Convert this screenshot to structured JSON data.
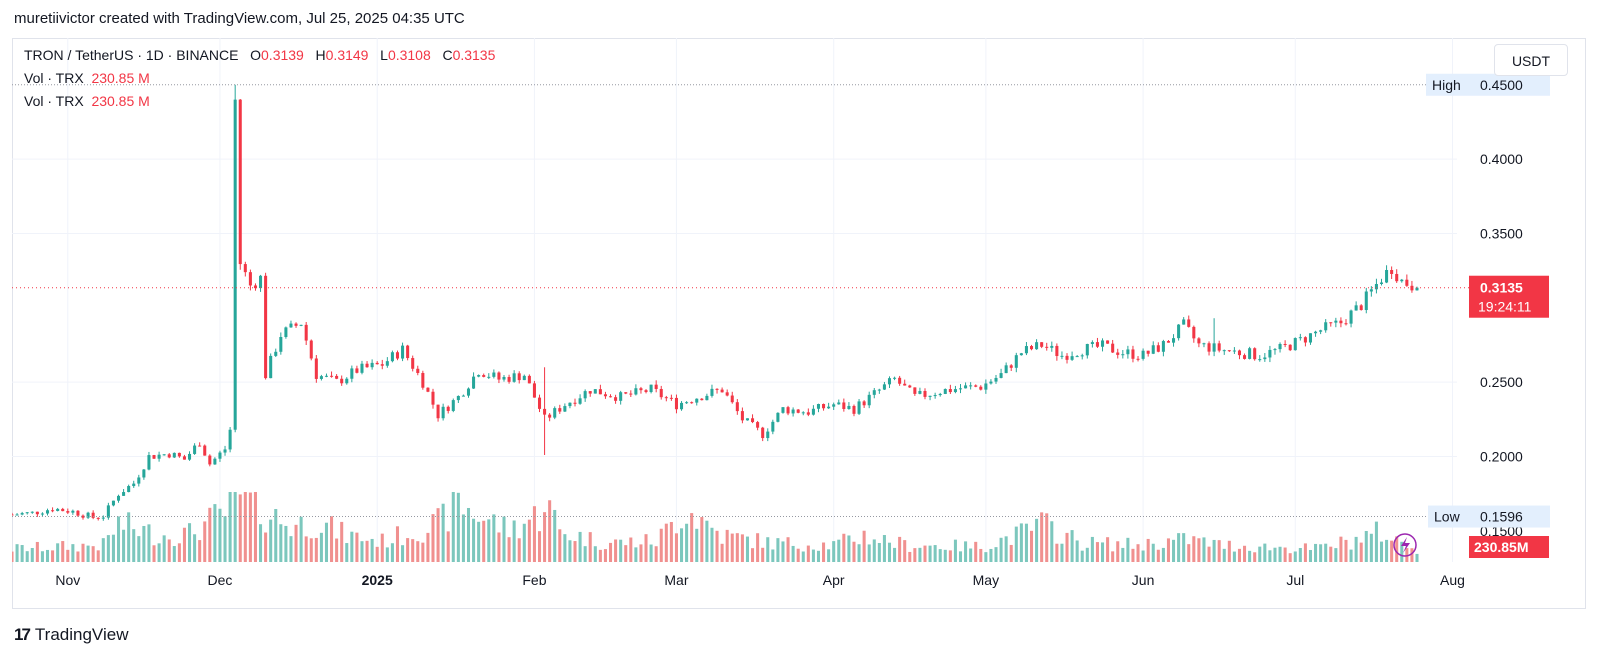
{
  "caption": "muretiivictor created with TradingView.com, Jul 25, 2025 04:35 UTC",
  "legend": {
    "symbol": "TRON / TetherUS · 1D · BINANCE",
    "o_label": "O",
    "o_value": "0.3139",
    "h_label": "H",
    "h_value": "0.3149",
    "l_label": "L",
    "l_value": "0.3108",
    "c_label": "C",
    "c_value": "0.3135",
    "vol_label": "Vol · TRX",
    "vol_value": "230.85 M",
    "vol2_label": "Vol · TRX",
    "vol2_value": "230.85 M"
  },
  "currency_button": "USDT",
  "footer_brand": "TradingView",
  "footer_mark": "17",
  "colors": {
    "up": "#26a69a",
    "down": "#f23645",
    "up_vol": "#7cc7bd",
    "down_vol": "#f0908f",
    "axis_text": "#131722",
    "grid": "#f0f3fa"
  },
  "chart_data": {
    "type": "candlestick",
    "symbol": "TRXUSDT",
    "interval": "1D",
    "x_start": "2024-10-21",
    "x_end": "2025-07-25",
    "ylim": [
      0.125,
      0.468
    ],
    "y_ticks": [
      "0.2000",
      "0.2500",
      "0.3500",
      "0.4000"
    ],
    "y_tick_values": [
      0.2,
      0.25,
      0.35,
      0.4
    ],
    "x_tick_labels": [
      "Nov",
      "Dec",
      "2025",
      "Feb",
      "Mar",
      "Apr",
      "May",
      "Jun",
      "Jul",
      "Aug"
    ],
    "x_tick_dates": [
      "2024-11-01",
      "2024-12-01",
      "2025-01-01",
      "2025-02-01",
      "2025-03-01",
      "2025-04-01",
      "2025-05-01",
      "2025-06-01",
      "2025-07-01",
      "2025-08-01"
    ],
    "high": {
      "label": "High",
      "value": "0.4500"
    },
    "low": {
      "label": "Low",
      "value": "0.1596"
    },
    "partial_tick": "0.1500",
    "last": {
      "value": "0.3135",
      "countdown": "19:24:11"
    },
    "volume_last": "230.85M",
    "close_points": [
      [
        "2024-10-21",
        0.161
      ],
      [
        "2024-10-25",
        0.162
      ],
      [
        "2024-10-29",
        0.165
      ],
      [
        "2024-11-02",
        0.163
      ],
      [
        "2024-11-06",
        0.159
      ],
      [
        "2024-11-08",
        0.16
      ],
      [
        "2024-11-11",
        0.175
      ],
      [
        "2024-11-14",
        0.182
      ],
      [
        "2024-11-17",
        0.2
      ],
      [
        "2024-11-21",
        0.202
      ],
      [
        "2024-11-24",
        0.198
      ],
      [
        "2024-11-27",
        0.21
      ],
      [
        "2024-11-29",
        0.195
      ],
      [
        "2024-12-02",
        0.205
      ],
      [
        "2024-12-03",
        0.218
      ],
      [
        "2024-12-04",
        0.44
      ],
      [
        "2024-12-05",
        0.33
      ],
      [
        "2024-12-07",
        0.315
      ],
      [
        "2024-12-09",
        0.32
      ],
      [
        "2024-12-10",
        0.255
      ],
      [
        "2024-12-13",
        0.282
      ],
      [
        "2024-12-17",
        0.29
      ],
      [
        "2024-12-20",
        0.255
      ],
      [
        "2024-12-24",
        0.25
      ],
      [
        "2024-12-28",
        0.258
      ],
      [
        "2025-01-02",
        0.262
      ],
      [
        "2025-01-06",
        0.272
      ],
      [
        "2025-01-10",
        0.25
      ],
      [
        "2025-01-13",
        0.228
      ],
      [
        "2025-01-17",
        0.24
      ],
      [
        "2025-01-21",
        0.258
      ],
      [
        "2025-01-25",
        0.252
      ],
      [
        "2025-01-30",
        0.255
      ],
      [
        "2025-02-03",
        0.225
      ],
      [
        "2025-02-07",
        0.235
      ],
      [
        "2025-02-12",
        0.245
      ],
      [
        "2025-02-18",
        0.24
      ],
      [
        "2025-02-24",
        0.245
      ],
      [
        "2025-03-01",
        0.235
      ],
      [
        "2025-03-05",
        0.24
      ],
      [
        "2025-03-10",
        0.245
      ],
      [
        "2025-03-14",
        0.225
      ],
      [
        "2025-03-18",
        0.215
      ],
      [
        "2025-03-22",
        0.232
      ],
      [
        "2025-03-27",
        0.23
      ],
      [
        "2025-04-01",
        0.235
      ],
      [
        "2025-04-05",
        0.232
      ],
      [
        "2025-04-09",
        0.242
      ],
      [
        "2025-04-13",
        0.252
      ],
      [
        "2025-04-17",
        0.24
      ],
      [
        "2025-04-22",
        0.244
      ],
      [
        "2025-04-26",
        0.246
      ],
      [
        "2025-04-30",
        0.247
      ],
      [
        "2025-05-04",
        0.255
      ],
      [
        "2025-05-08",
        0.27
      ],
      [
        "2025-05-12",
        0.275
      ],
      [
        "2025-05-16",
        0.268
      ],
      [
        "2025-05-20",
        0.272
      ],
      [
        "2025-05-24",
        0.274
      ],
      [
        "2025-05-28",
        0.27
      ],
      [
        "2025-06-01",
        0.268
      ],
      [
        "2025-06-05",
        0.275
      ],
      [
        "2025-06-09",
        0.288
      ],
      [
        "2025-06-12",
        0.275
      ],
      [
        "2025-06-16",
        0.272
      ],
      [
        "2025-06-20",
        0.27
      ],
      [
        "2025-06-24",
        0.268
      ],
      [
        "2025-06-28",
        0.272
      ],
      [
        "2025-07-02",
        0.278
      ],
      [
        "2025-07-06",
        0.285
      ],
      [
        "2025-07-10",
        0.29
      ],
      [
        "2025-07-14",
        0.302
      ],
      [
        "2025-07-18",
        0.32
      ],
      [
        "2025-07-20",
        0.327
      ],
      [
        "2025-07-22",
        0.318
      ],
      [
        "2025-07-25",
        0.3135
      ]
    ],
    "spikes": [
      [
        "2024-12-04",
        0.45,
        0.218
      ],
      [
        "2025-02-03",
        0.26,
        0.201
      ],
      [
        "2025-06-15",
        0.293,
        0.268
      ]
    ],
    "volume_series": [
      [
        "2024-10-21",
        14
      ],
      [
        "2024-11-08",
        18
      ],
      [
        "2024-11-11",
        40
      ],
      [
        "2024-11-19",
        28
      ],
      [
        "2024-11-25",
        30
      ],
      [
        "2024-12-03",
        55
      ],
      [
        "2024-12-04",
        72
      ],
      [
        "2024-12-05",
        68
      ],
      [
        "2024-12-10",
        52
      ],
      [
        "2024-12-15",
        38
      ],
      [
        "2024-12-20",
        42
      ],
      [
        "2024-12-26",
        28
      ],
      [
        "2025-01-02",
        22
      ],
      [
        "2025-01-07",
        30
      ],
      [
        "2025-01-13",
        40
      ],
      [
        "2025-01-17",
        62
      ],
      [
        "2025-01-20",
        52
      ],
      [
        "2025-01-27",
        34
      ],
      [
        "2025-02-02",
        50
      ],
      [
        "2025-02-03",
        68
      ],
      [
        "2025-02-06",
        32
      ],
      [
        "2025-02-15",
        20
      ],
      [
        "2025-02-25",
        22
      ],
      [
        "2025-03-03",
        56
      ],
      [
        "2025-03-10",
        28
      ],
      [
        "2025-03-20",
        20
      ],
      [
        "2025-04-01",
        18
      ],
      [
        "2025-04-07",
        28
      ],
      [
        "2025-04-15",
        18
      ],
      [
        "2025-04-30",
        16
      ],
      [
        "2025-05-08",
        30
      ],
      [
        "2025-05-12",
        40
      ],
      [
        "2025-05-20",
        20
      ],
      [
        "2025-05-31",
        18
      ],
      [
        "2025-06-10",
        24
      ],
      [
        "2025-06-16",
        18
      ],
      [
        "2025-06-24",
        16
      ],
      [
        "2025-07-05",
        14
      ],
      [
        "2025-07-12",
        22
      ],
      [
        "2025-07-18",
        32
      ],
      [
        "2025-07-20",
        24
      ],
      [
        "2025-07-25",
        14
      ]
    ]
  }
}
